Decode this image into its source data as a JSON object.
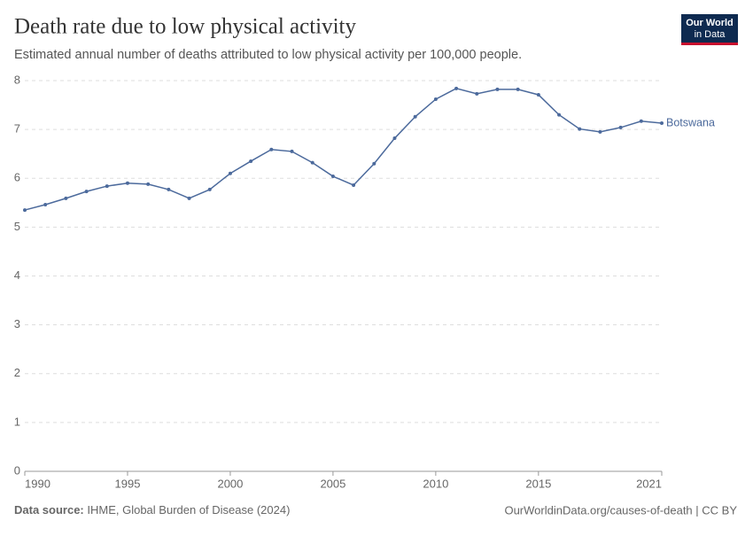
{
  "chart_data": {
    "type": "line",
    "title": "Death rate due to low physical activity",
    "subtitle": "Estimated annual number of deaths attributed to low physical activity per 100,000 people.",
    "logo": [
      "Our World",
      "in Data"
    ],
    "source_label": "Data source:",
    "source": "IHME, Global Burden of Disease (2024)",
    "footer_right": "OurWorldinData.org/causes-of-death | CC BY",
    "x": [
      1990,
      1991,
      1992,
      1993,
      1994,
      1995,
      1996,
      1997,
      1998,
      1999,
      2000,
      2001,
      2002,
      2003,
      2004,
      2005,
      2006,
      2007,
      2008,
      2009,
      2010,
      2011,
      2012,
      2013,
      2014,
      2015,
      2016,
      2017,
      2018,
      2019,
      2020,
      2021
    ],
    "series": [
      {
        "name": "Botswana",
        "color": "#4c6a9c",
        "values": [
          5.35,
          5.46,
          5.59,
          5.73,
          5.84,
          5.9,
          5.88,
          5.77,
          5.59,
          5.77,
          6.1,
          6.35,
          6.59,
          6.55,
          6.32,
          6.04,
          5.86,
          6.3,
          6.82,
          7.26,
          7.62,
          7.84,
          7.73,
          7.82,
          7.82,
          7.71,
          7.3,
          7.01,
          6.95,
          7.04,
          7.17,
          7.13
        ]
      }
    ],
    "xlim": [
      1990,
      2021
    ],
    "xticks": [
      1990,
      1995,
      2000,
      2005,
      2010,
      2015,
      2021
    ],
    "ylim": [
      0,
      8
    ],
    "yticks": [
      0,
      1,
      2,
      3,
      4,
      5,
      6,
      7,
      8
    ],
    "grid": true
  }
}
